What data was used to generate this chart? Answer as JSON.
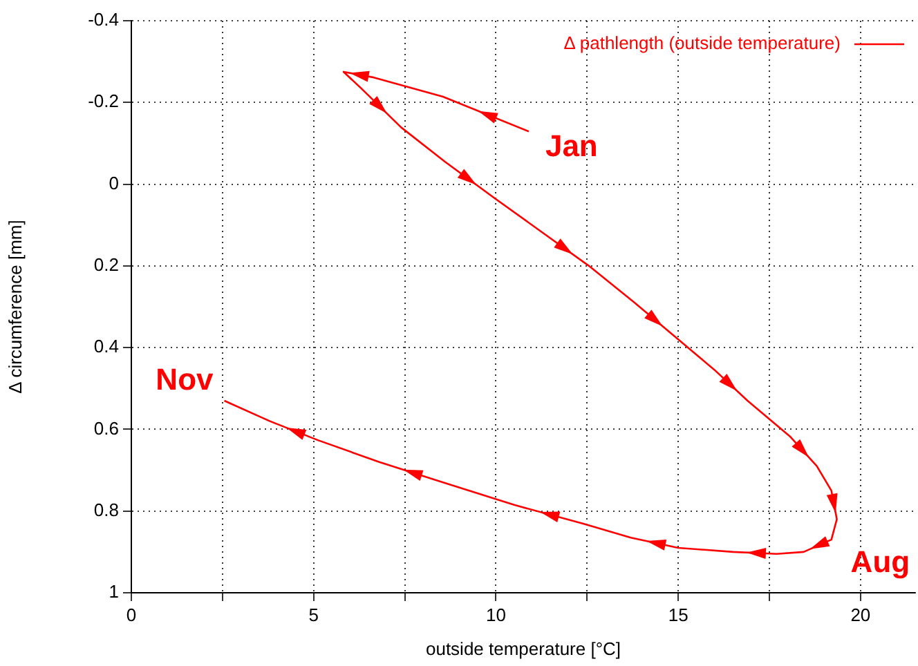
{
  "chart_data": {
    "type": "line",
    "xlabel": "outside temperature [°C]",
    "ylabel": "Δ circumference [mm]",
    "xlim": [
      0,
      21.5
    ],
    "xticks": [
      0,
      {
        "value": 2.5,
        "label": null
      },
      5,
      {
        "value": 7.5,
        "label": null
      },
      10,
      {
        "value": 12.5,
        "label": null
      },
      15,
      {
        "value": 17.5,
        "label": null
      },
      20
    ],
    "ylim": [
      1,
      -0.4
    ],
    "yticks": [
      1,
      0.8,
      0.6,
      0.4,
      0.2,
      0,
      -0.2,
      -0.4
    ],
    "grid": true,
    "legend": "top right",
    "marker": "none",
    "line_style": "solid",
    "series": [
      {
        "name": "Δ pathlength (outside temperature)",
        "color": "#ff0000",
        "x": [
          10.9,
          8.55,
          6.6,
          5.82,
          6.3,
          7.4,
          8.6,
          9.96,
          11.3,
          12.55,
          13.8,
          15.0,
          16.0,
          16.9,
          18.06,
          18.8,
          19.2,
          19.35,
          19.2,
          18.44,
          17.7,
          16.5,
          15.0,
          13.7,
          12.36,
          10.5,
          8.55,
          6.8,
          5.13,
          3.8,
          2.55
        ],
        "values": [
          -0.129,
          -0.214,
          -0.262,
          -0.275,
          -0.235,
          -0.139,
          -0.055,
          0.034,
          0.12,
          0.2,
          0.29,
          0.38,
          0.455,
          0.53,
          0.617,
          0.69,
          0.75,
          0.82,
          0.87,
          0.9,
          0.905,
          0.9,
          0.89,
          0.865,
          0.83,
          0.785,
          0.73,
          0.68,
          0.627,
          0.58,
          0.53
        ]
      }
    ],
    "annotations": [
      {
        "text": "Jan",
        "x": 10.9,
        "y": -0.129
      },
      {
        "text": "Nov",
        "x": 2.55,
        "y": 0.53
      },
      {
        "text": "Aug",
        "x": 19.35,
        "y": 0.82
      }
    ]
  }
}
